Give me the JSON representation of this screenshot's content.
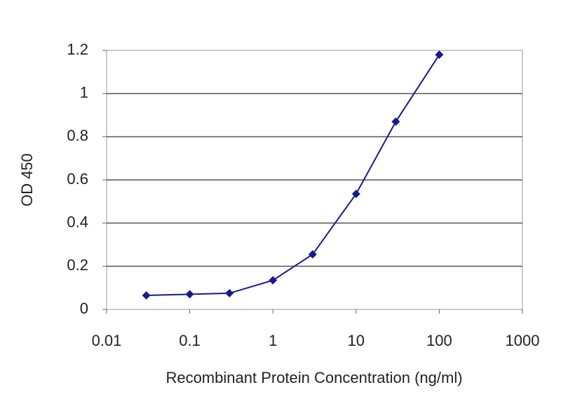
{
  "chart_data": {
    "type": "line",
    "x_label": "Recombinant Protein Concentration (ng/ml)",
    "y_label": "OD 450",
    "x": [
      0.03,
      0.1,
      0.3,
      1,
      3,
      10,
      30,
      100
    ],
    "series": [
      {
        "color": "#1a1a8c",
        "values": [
          0.065,
          0.07,
          0.075,
          0.135,
          0.255,
          0.535,
          0.87,
          1.18
        ]
      }
    ],
    "xlim": [
      0.01,
      1000
    ],
    "xticks": [
      0.01,
      0.1,
      1,
      10,
      100,
      1000
    ],
    "xscale": "log",
    "ylim": [
      0,
      1.2
    ],
    "yticks": [
      0,
      0.2,
      0.4,
      0.6,
      0.8,
      1,
      1.2
    ],
    "grid": true
  }
}
